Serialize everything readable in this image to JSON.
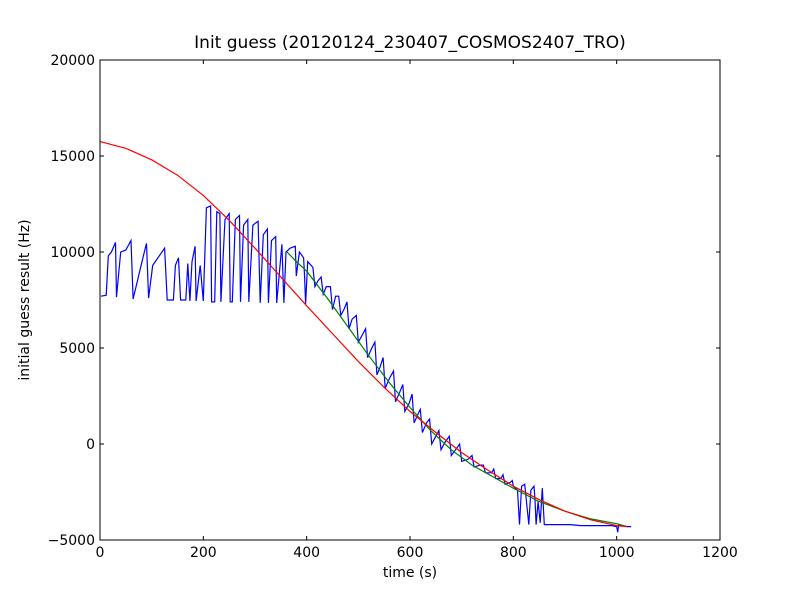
{
  "chart_data": {
    "type": "line",
    "title": "Init guess (20120124_230407_COSMOS2407_TRO)",
    "xlabel": "time (s)",
    "ylabel": "initial guess result (Hz)",
    "xlim": [
      0,
      1200
    ],
    "ylim": [
      -5000,
      20000
    ],
    "xticks": [
      0,
      200,
      400,
      600,
      800,
      1000,
      1200
    ],
    "yticks": [
      -5000,
      0,
      5000,
      10000,
      15000,
      20000
    ],
    "grid": false,
    "legend": "none",
    "series": [
      {
        "color": "#0000ff",
        "points": [
          [
            2,
            7700
          ],
          [
            12,
            7750
          ],
          [
            16,
            9800
          ],
          [
            22,
            10000
          ],
          [
            30,
            10500
          ],
          [
            32,
            7650
          ],
          [
            40,
            10000
          ],
          [
            50,
            10100
          ],
          [
            60,
            10600
          ],
          [
            64,
            7550
          ],
          [
            84,
            9800
          ],
          [
            90,
            10450
          ],
          [
            94,
            7600
          ],
          [
            102,
            9300
          ],
          [
            112,
            9700
          ],
          [
            125,
            10200
          ],
          [
            130,
            7500
          ],
          [
            142,
            7500
          ],
          [
            146,
            9300
          ],
          [
            152,
            9700
          ],
          [
            156,
            7500
          ],
          [
            166,
            7500
          ],
          [
            170,
            9400
          ],
          [
            174,
            7450
          ],
          [
            178,
            9500
          ],
          [
            184,
            10300
          ],
          [
            186,
            7450
          ],
          [
            194,
            9300
          ],
          [
            200,
            7450
          ],
          [
            206,
            12300
          ],
          [
            214,
            12400
          ],
          [
            216,
            7400
          ],
          [
            222,
            7400
          ],
          [
            226,
            12100
          ],
          [
            232,
            12000
          ],
          [
            234,
            7400
          ],
          [
            242,
            11700
          ],
          [
            250,
            12000
          ],
          [
            252,
            7400
          ],
          [
            256,
            7400
          ],
          [
            262,
            11700
          ],
          [
            270,
            11900
          ],
          [
            272,
            7400
          ],
          [
            278,
            11400
          ],
          [
            286,
            11700
          ],
          [
            288,
            7400
          ],
          [
            296,
            11400
          ],
          [
            306,
            11600
          ],
          [
            310,
            7350
          ],
          [
            316,
            10900
          ],
          [
            324,
            11200
          ],
          [
            326,
            7350
          ],
          [
            332,
            10600
          ],
          [
            340,
            10800
          ],
          [
            342,
            7350
          ],
          [
            352,
            10400
          ],
          [
            356,
            7350
          ],
          [
            360,
            10000
          ],
          [
            368,
            10200
          ],
          [
            378,
            10300
          ],
          [
            380,
            8750
          ],
          [
            386,
            10000
          ],
          [
            394,
            9700
          ],
          [
            396,
            8700
          ],
          [
            398,
            7300
          ],
          [
            402,
            9500
          ],
          [
            412,
            9200
          ],
          [
            416,
            8200
          ],
          [
            422,
            8500
          ],
          [
            428,
            8700
          ],
          [
            432,
            7800
          ],
          [
            438,
            8200
          ],
          [
            446,
            8200
          ],
          [
            450,
            7000
          ],
          [
            456,
            7700
          ],
          [
            462,
            7700
          ],
          [
            466,
            6700
          ],
          [
            472,
            7000
          ],
          [
            478,
            7400
          ],
          [
            482,
            6000
          ],
          [
            488,
            6500
          ],
          [
            496,
            6700
          ],
          [
            500,
            5300
          ],
          [
            508,
            5700
          ],
          [
            514,
            6000
          ],
          [
            518,
            4500
          ],
          [
            526,
            5000
          ],
          [
            532,
            5300
          ],
          [
            536,
            3600
          ],
          [
            542,
            4000
          ],
          [
            548,
            4500
          ],
          [
            552,
            2900
          ],
          [
            560,
            3400
          ],
          [
            568,
            3800
          ],
          [
            572,
            2200
          ],
          [
            580,
            2700
          ],
          [
            586,
            3100
          ],
          [
            590,
            1700
          ],
          [
            598,
            2100
          ],
          [
            604,
            2600
          ],
          [
            608,
            1100
          ],
          [
            616,
            1600
          ],
          [
            620,
            1800
          ],
          [
            624,
            600
          ],
          [
            632,
            1100
          ],
          [
            638,
            1300
          ],
          [
            642,
            0
          ],
          [
            650,
            400
          ],
          [
            656,
            700
          ],
          [
            660,
            -300
          ],
          [
            668,
            100
          ],
          [
            676,
            400
          ],
          [
            680,
            -600
          ],
          [
            688,
            -300
          ],
          [
            696,
            0
          ],
          [
            700,
            -900
          ],
          [
            712,
            -800
          ],
          [
            720,
            -600
          ],
          [
            724,
            -1200
          ],
          [
            736,
            -1100
          ],
          [
            742,
            -1100
          ],
          [
            746,
            -1500
          ],
          [
            758,
            -1500
          ],
          [
            762,
            -1300
          ],
          [
            766,
            -1800
          ],
          [
            776,
            -1800
          ],
          [
            780,
            -1600
          ],
          [
            784,
            -2100
          ],
          [
            794,
            -2000
          ],
          [
            798,
            -1900
          ],
          [
            800,
            -2200
          ],
          [
            808,
            -2400
          ],
          [
            812,
            -4200
          ],
          [
            816,
            -2200
          ],
          [
            822,
            -2100
          ],
          [
            824,
            -2600
          ],
          [
            830,
            -4200
          ],
          [
            834,
            -2400
          ],
          [
            840,
            -2200
          ],
          [
            842,
            -2900
          ],
          [
            844,
            -4200
          ],
          [
            848,
            -3000
          ],
          [
            852,
            -4100
          ],
          [
            856,
            -2300
          ],
          [
            860,
            -4200
          ],
          [
            880,
            -4200
          ],
          [
            910,
            -4200
          ],
          [
            930,
            -4250
          ],
          [
            960,
            -4250
          ],
          [
            990,
            -4250
          ],
          [
            1000,
            -4300
          ],
          [
            1002,
            -4600
          ],
          [
            1004,
            -4200
          ],
          [
            1010,
            -4250
          ],
          [
            1020,
            -4300
          ],
          [
            1028,
            -4300
          ]
        ]
      },
      {
        "color": "#008000",
        "points": [
          [
            362,
            10000
          ],
          [
            380,
            9500
          ],
          [
            400,
            9000
          ],
          [
            440,
            7600
          ],
          [
            480,
            6100
          ],
          [
            520,
            4600
          ],
          [
            560,
            3200
          ],
          [
            600,
            1900
          ],
          [
            640,
            700
          ],
          [
            680,
            -300
          ],
          [
            720,
            -1100
          ],
          [
            760,
            -1700
          ],
          [
            800,
            -2300
          ],
          [
            850,
            -3000
          ],
          [
            900,
            -3500
          ],
          [
            950,
            -3900
          ],
          [
            1000,
            -4150
          ],
          [
            1020,
            -4300
          ]
        ]
      },
      {
        "color": "#ff0000",
        "points": [
          [
            0,
            15750
          ],
          [
            50,
            15400
          ],
          [
            100,
            14800
          ],
          [
            150,
            14000
          ],
          [
            200,
            12950
          ],
          [
            250,
            11650
          ],
          [
            300,
            10200
          ],
          [
            350,
            8700
          ],
          [
            400,
            7200
          ],
          [
            450,
            5750
          ],
          [
            500,
            4300
          ],
          [
            550,
            2950
          ],
          [
            600,
            1700
          ],
          [
            650,
            600
          ],
          [
            700,
            -450
          ],
          [
            750,
            -1350
          ],
          [
            800,
            -2200
          ],
          [
            850,
            -2900
          ],
          [
            900,
            -3500
          ],
          [
            950,
            -3950
          ],
          [
            1000,
            -4250
          ],
          [
            1020,
            -4300
          ]
        ]
      }
    ]
  }
}
